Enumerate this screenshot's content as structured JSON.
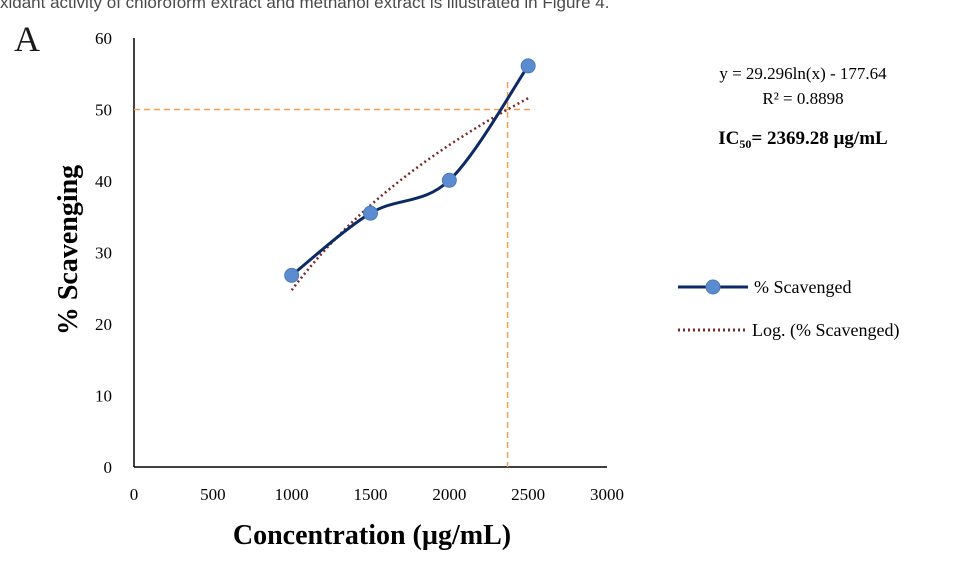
{
  "header_text": "xidant activity of chloroform extract and methanol extract is illustrated in Figure 4.",
  "panel_label": "A",
  "chart_data": {
    "type": "line",
    "title": "",
    "xlabel": "Concentration (µg/mL)",
    "ylabel": "% Scavenging",
    "xlim": [
      0,
      3000
    ],
    "ylim": [
      0,
      60
    ],
    "x_ticks": [
      0,
      500,
      1000,
      1500,
      2000,
      2500,
      3000
    ],
    "y_ticks": [
      0,
      10,
      20,
      30,
      40,
      50,
      60
    ],
    "grid": false,
    "legend_position": "right",
    "series": [
      {
        "name": "% Scavenged",
        "x": [
          1000,
          1500,
          2000,
          2500
        ],
        "y": [
          26.8,
          35.5,
          40.1,
          56.1
        ],
        "color": "#0b2a66",
        "marker_color": "#5b8ccf",
        "smooth": true
      },
      {
        "name": "Log. (% Scavenged)",
        "fit": "logarithmic",
        "a": 29.296,
        "b": -177.64,
        "x_range": [
          1000,
          2500
        ],
        "color": "#7a2a2a",
        "dash": "dotted"
      }
    ],
    "annotations": {
      "equation": "y = 29.296ln(x) - 177.64",
      "r_squared": "R² = 0.8898",
      "ic50_prefix": "IC",
      "ic50_sub": "50",
      "ic50_value": "= 2369.28 µg/mL"
    },
    "reference_lines": {
      "y_value": 50,
      "x_value": 2369.28,
      "color": "#f0a050"
    }
  }
}
